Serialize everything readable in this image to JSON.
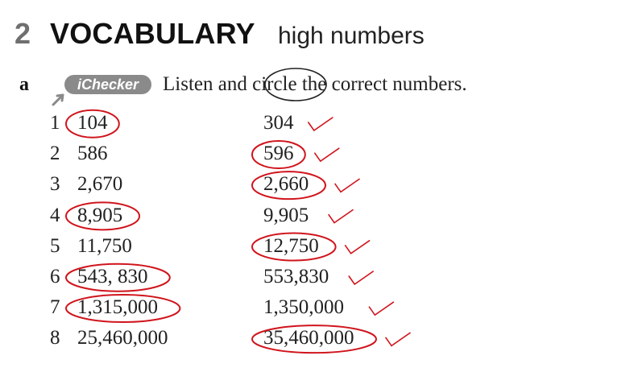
{
  "section": {
    "number": "2",
    "title": "VOCABULARY",
    "subtitle": "high numbers"
  },
  "exercise": {
    "letter": "a",
    "badge": "iChecker",
    "instruction_before": "Listen and ",
    "instruction_circled": "circle",
    "instruction_after": " the correct numbers."
  },
  "items": [
    {
      "num": "1",
      "left": "104",
      "right": "304",
      "circled": "left",
      "checked": true
    },
    {
      "num": "2",
      "left": "586",
      "right": "596",
      "circled": "right",
      "checked": true
    },
    {
      "num": "3",
      "left": "2,670",
      "right": "2,660",
      "circled": "right",
      "checked": true
    },
    {
      "num": "4",
      "left": "8,905",
      "right": "9,905",
      "circled": "left",
      "checked": true
    },
    {
      "num": "5",
      "left": "11,750",
      "right": "12,750",
      "circled": "right",
      "checked": true
    },
    {
      "num": "6",
      "left": "543, 830",
      "right": "553,830",
      "circled": "left",
      "checked": true
    },
    {
      "num": "7",
      "left": "1,315,000",
      "right": "1,350,000",
      "circled": "left",
      "checked": true
    },
    {
      "num": "8",
      "left": "25,460,000",
      "right": "35,460,000",
      "circled": "right",
      "checked": true
    }
  ],
  "colors": {
    "annotation": "#d0141c",
    "badge": "#8a8a8a",
    "section_number": "#6f6f6f"
  },
  "icons": {
    "badge_pointer": "cursor-arrow-icon",
    "check": "check-mark-icon"
  }
}
